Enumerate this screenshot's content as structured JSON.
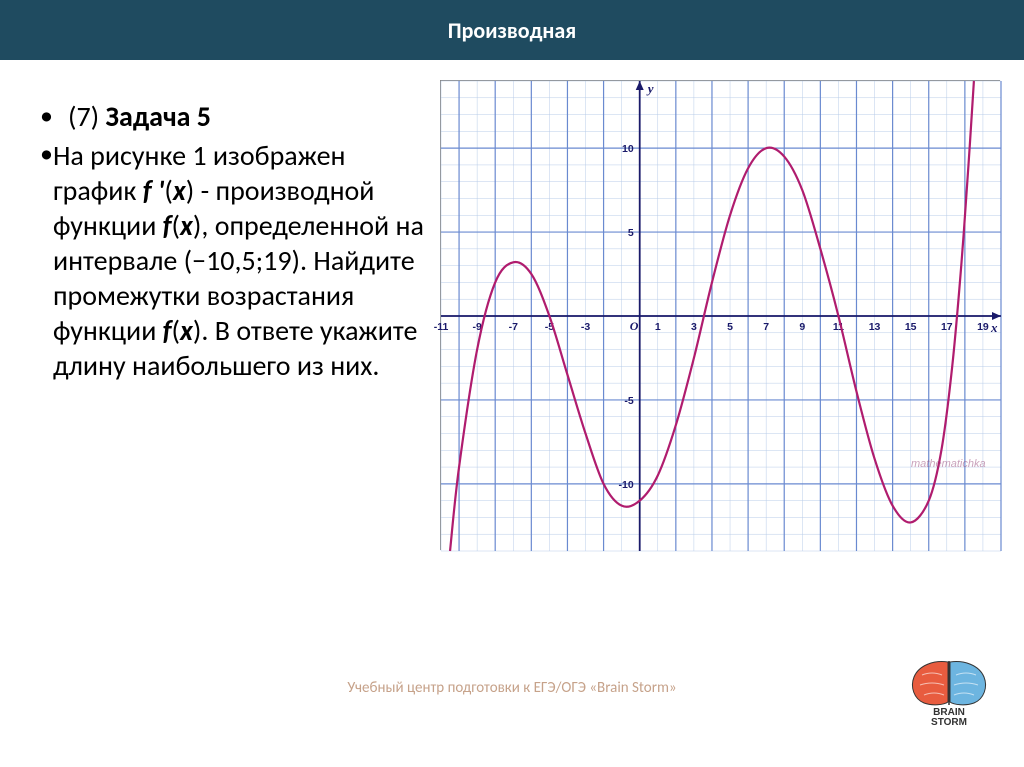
{
  "header": {
    "title": "Производная"
  },
  "task": {
    "number_prefix": "(7) ",
    "title": "Задача 5",
    "body": "На рисунке 1 изображен график <i><b>f '</b></i>(<i><b>x</b></i>) - производной функции <i><b>f</b></i>(<i><b>x</b></i>), определенной на интервале (−10,5;19). Найдите промежутки возрастания функции <i><b>f</b></i>(<i><b>x</b></i>). В ответе укажите длину наибольшего из них."
  },
  "chart": {
    "type": "line",
    "xlim": [
      -11,
      20
    ],
    "ylim": [
      -14,
      14
    ],
    "x_major_step": 2,
    "y_major_step": 5,
    "minor_step": 1,
    "axis_color": "#1a1a6a",
    "major_grid_color": "#6a8ad0",
    "minor_grid_color": "#b8cce8",
    "major_grid_width": 1.2,
    "minor_grid_width": 0.5,
    "background_color": "#ffffff",
    "curve_color": "#b01c6e",
    "curve_width": 2.2,
    "x_axis_label": "x",
    "y_axis_label": "y",
    "x_ticks": [
      -11,
      -9,
      -7,
      -5,
      -3,
      1,
      3,
      5,
      7,
      9,
      11,
      13,
      15,
      17,
      19
    ],
    "y_ticks": [
      -10,
      -5,
      5,
      10
    ],
    "origin_label": "O",
    "tick_fontsize": 10.5,
    "tick_color": "#1a1a6a",
    "curve_points": [
      [
        -10.5,
        -14
      ],
      [
        -10,
        -9
      ],
      [
        -9,
        -2
      ],
      [
        -8,
        2
      ],
      [
        -7,
        3.2
      ],
      [
        -6,
        2.5
      ],
      [
        -5,
        0
      ],
      [
        -4,
        -3.5
      ],
      [
        -3,
        -7
      ],
      [
        -2,
        -10
      ],
      [
        -1,
        -11.3
      ],
      [
        0,
        -11
      ],
      [
        1,
        -9.5
      ],
      [
        2,
        -6.5
      ],
      [
        3,
        -2.5
      ],
      [
        4,
        2
      ],
      [
        5,
        6
      ],
      [
        6,
        8.8
      ],
      [
        7,
        10
      ],
      [
        8,
        9.5
      ],
      [
        9,
        7.5
      ],
      [
        10,
        4
      ],
      [
        11,
        0
      ],
      [
        12,
        -4.5
      ],
      [
        13,
        -8.5
      ],
      [
        14,
        -11.3
      ],
      [
        15,
        -12.3
      ],
      [
        16,
        -11
      ],
      [
        16.7,
        -8
      ],
      [
        17.3,
        -3
      ],
      [
        17.8,
        3
      ],
      [
        18.2,
        9
      ],
      [
        18.5,
        14
      ]
    ],
    "watermark": "mathematichka"
  },
  "footer": {
    "text": "Учебный центр подготовки к ЕГЭ/ОГЭ «Brain Storm»"
  },
  "logo": {
    "left_color": "#e85c3f",
    "right_color": "#6db5e0",
    "text_top": "BRAIN",
    "text_bottom": "STORM",
    "text_color": "#333333"
  }
}
